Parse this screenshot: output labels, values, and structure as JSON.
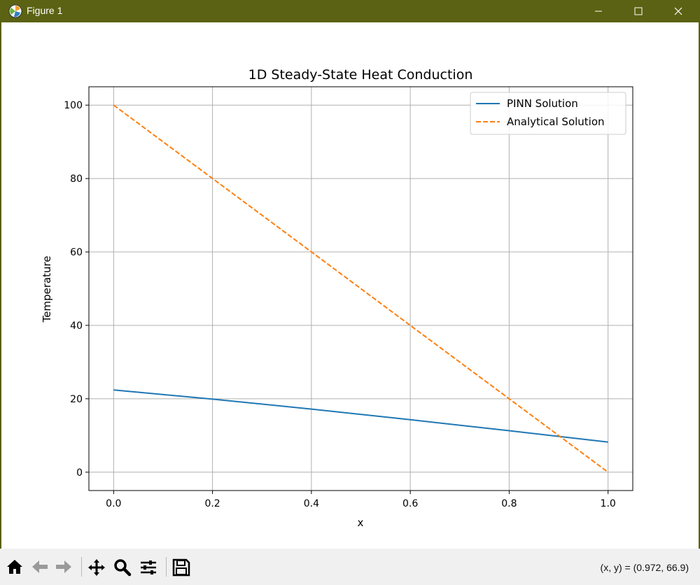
{
  "window": {
    "title": "Figure 1"
  },
  "chart_data": {
    "type": "line",
    "title": "1D Steady-State Heat Conduction",
    "xlabel": "x",
    "ylabel": "Temperature",
    "xlim": [
      -0.05,
      1.05
    ],
    "ylim": [
      -5,
      105
    ],
    "xticks": [
      0.0,
      0.2,
      0.4,
      0.6,
      0.8,
      1.0
    ],
    "xtick_labels": [
      "0.0",
      "0.2",
      "0.4",
      "0.6",
      "0.8",
      "1.0"
    ],
    "yticks": [
      0,
      20,
      40,
      60,
      80,
      100
    ],
    "ytick_labels": [
      "0",
      "20",
      "40",
      "60",
      "80",
      "100"
    ],
    "grid": true,
    "legend_position": "top-right",
    "series": [
      {
        "name": "PINN Solution",
        "color": "#1f77b4",
        "dash": "solid",
        "x": [
          0.0,
          0.2,
          0.4,
          0.6,
          0.8,
          1.0
        ],
        "y": [
          22.4,
          19.9,
          17.2,
          14.3,
          11.3,
          8.2
        ]
      },
      {
        "name": "Analytical Solution",
        "color": "#ff7f0e",
        "dash": "dashed",
        "x": [
          0.0,
          0.2,
          0.4,
          0.6,
          0.8,
          1.0
        ],
        "y": [
          100,
          80,
          60,
          40,
          20,
          0
        ]
      }
    ]
  },
  "toolbar": {
    "coords_text": "(x, y) = (0.972, 66.9)",
    "buttons": [
      "home-icon",
      "back-arrow-icon",
      "forward-arrow-icon",
      "pan-icon",
      "zoom-icon",
      "configure-subplots-icon",
      "save-icon"
    ]
  }
}
